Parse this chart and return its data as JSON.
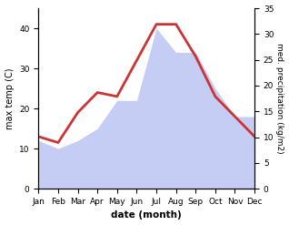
{
  "months": [
    "Jan",
    "Feb",
    "Mar",
    "Apr",
    "May",
    "Jun",
    "Jul",
    "Aug",
    "Sep",
    "Oct",
    "Nov",
    "Dec"
  ],
  "temp": [
    13,
    11.5,
    19,
    24,
    23,
    32,
    41,
    41,
    33,
    23,
    18,
    13
  ],
  "precip_left_scale": [
    12,
    10,
    12,
    15,
    22,
    22,
    40,
    34,
    34,
    25,
    18,
    18
  ],
  "temp_color": "#cc3333",
  "precip_fill_color": "#c5cdf5",
  "temp_lw": 2.0,
  "ylabel_left": "max temp (C)",
  "ylabel_right": "med. precipitation (kg/m2)",
  "xlabel": "date (month)",
  "ylim_left": [
    0,
    45
  ],
  "ylim_right": [
    0,
    35
  ],
  "yticks_left": [
    0,
    10,
    20,
    30,
    40
  ],
  "yticks_right": [
    0,
    5,
    10,
    15,
    20,
    25,
    30,
    35
  ],
  "bg_color": "#ffffff"
}
